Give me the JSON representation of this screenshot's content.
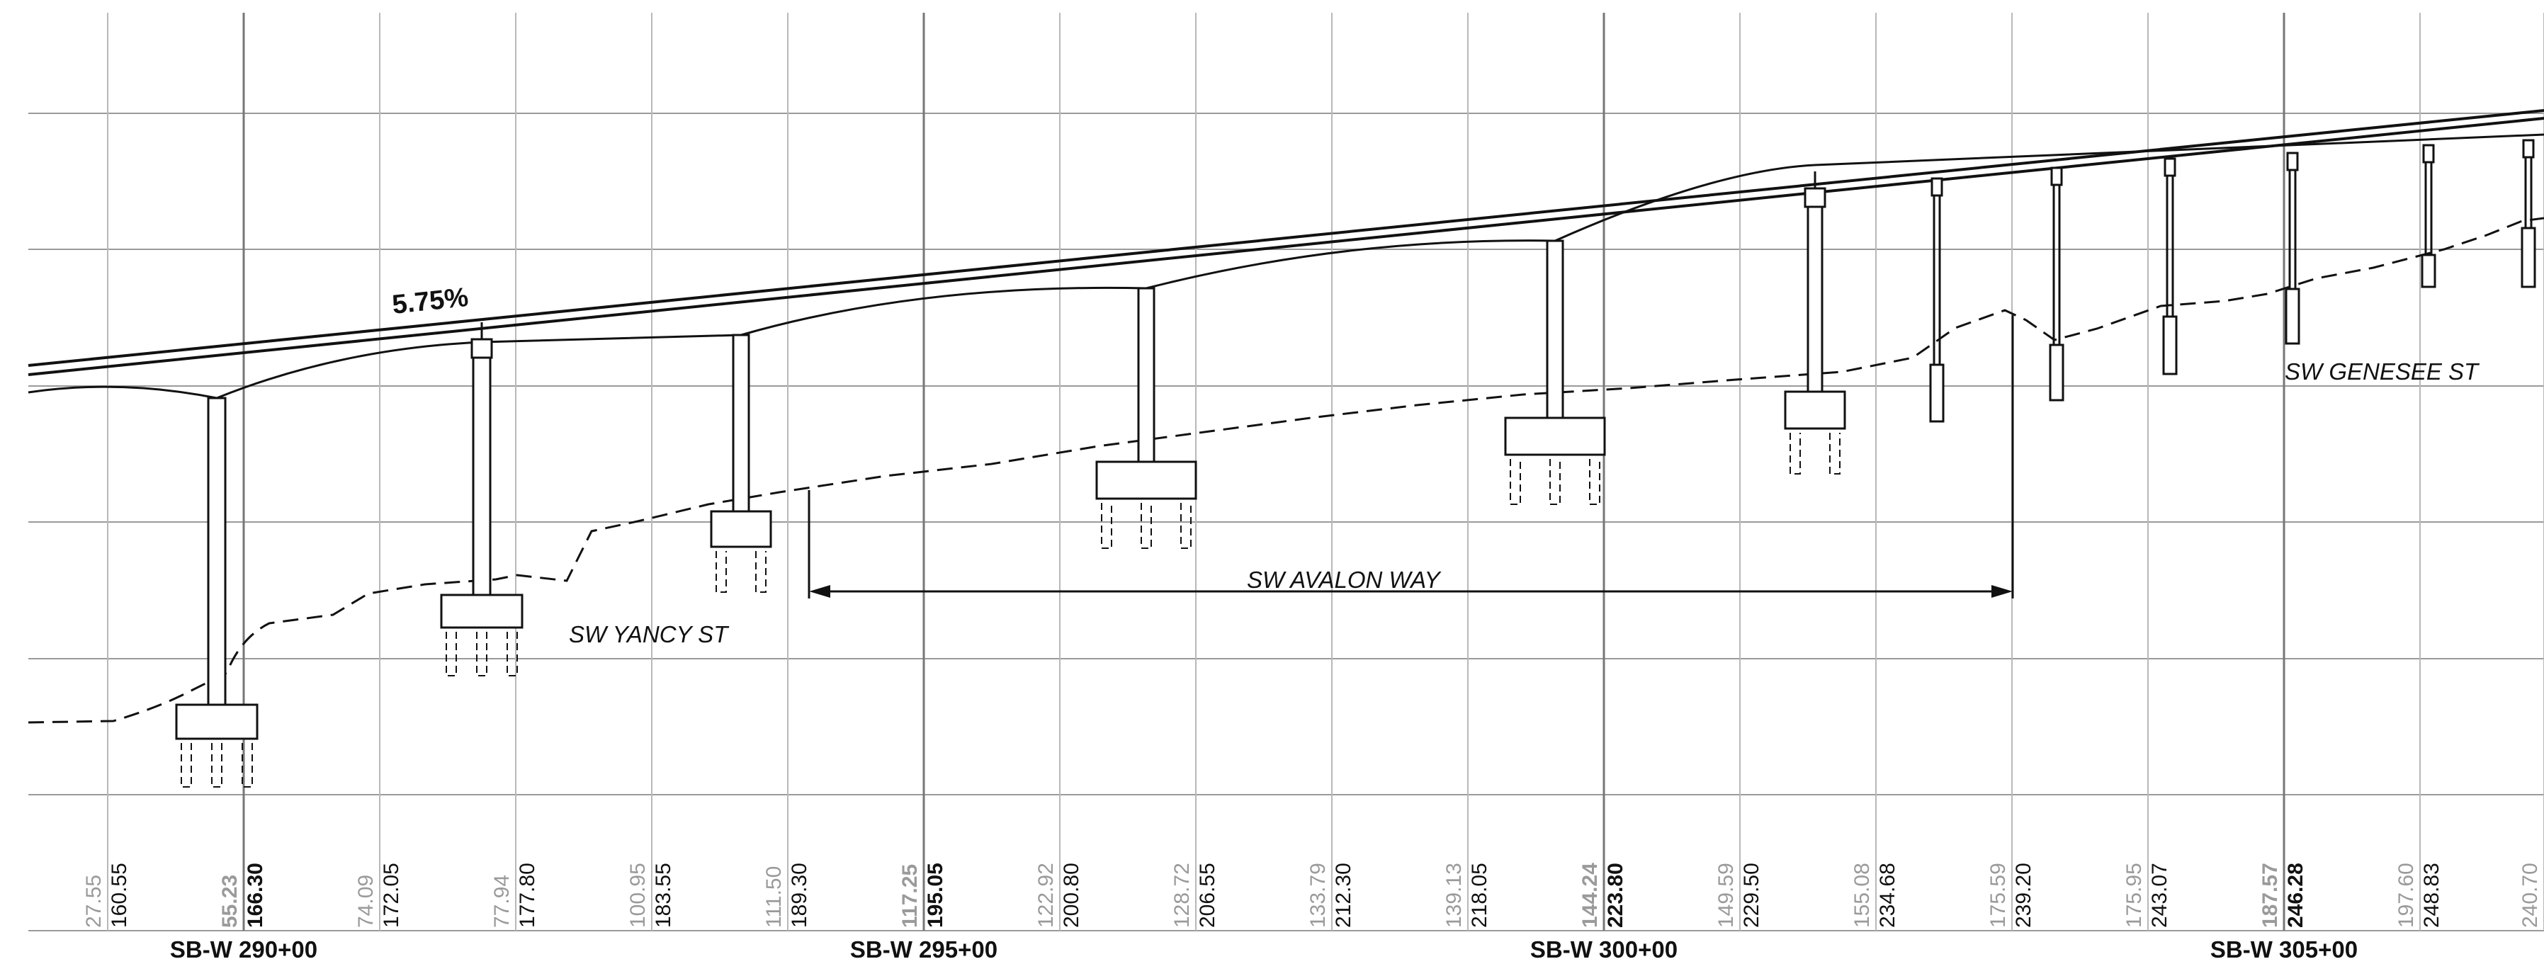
{
  "profile": {
    "grade_label": "5.75%",
    "street_labels": [
      "SW YANCY ST",
      "SW AVALON WAY",
      "SW GENESEE ST"
    ],
    "station_labels": [
      "SB-W 290+00",
      "SB-W 295+00",
      "SB-W 300+00",
      "SB-W 305+00"
    ],
    "elevation_columns": [
      {
        "ground": "27.55",
        "profile": "160.55",
        "major": false
      },
      {
        "ground": "55.23",
        "profile": "166.30",
        "major": true
      },
      {
        "ground": "74.09",
        "profile": "172.05",
        "major": false
      },
      {
        "ground": "77.94",
        "profile": "177.80",
        "major": false
      },
      {
        "ground": "100.95",
        "profile": "183.55",
        "major": false
      },
      {
        "ground": "111.50",
        "profile": "189.30",
        "major": false
      },
      {
        "ground": "117.25",
        "profile": "195.05",
        "major": true
      },
      {
        "ground": "122.92",
        "profile": "200.80",
        "major": false
      },
      {
        "ground": "128.72",
        "profile": "206.55",
        "major": false
      },
      {
        "ground": "133.79",
        "profile": "212.30",
        "major": false
      },
      {
        "ground": "139.13",
        "profile": "218.05",
        "major": false
      },
      {
        "ground": "144.24",
        "profile": "223.80",
        "major": true
      },
      {
        "ground": "149.59",
        "profile": "229.50",
        "major": false
      },
      {
        "ground": "155.08",
        "profile": "234.68",
        "major": false
      },
      {
        "ground": "175.59",
        "profile": "239.20",
        "major": false
      },
      {
        "ground": "175.95",
        "profile": "243.07",
        "major": false
      },
      {
        "ground": "187.57",
        "profile": "246.28",
        "major": true
      },
      {
        "ground": "197.60",
        "profile": "248.83",
        "major": false
      },
      {
        "ground": "240.70",
        "profile": "",
        "major": false
      }
    ]
  }
}
